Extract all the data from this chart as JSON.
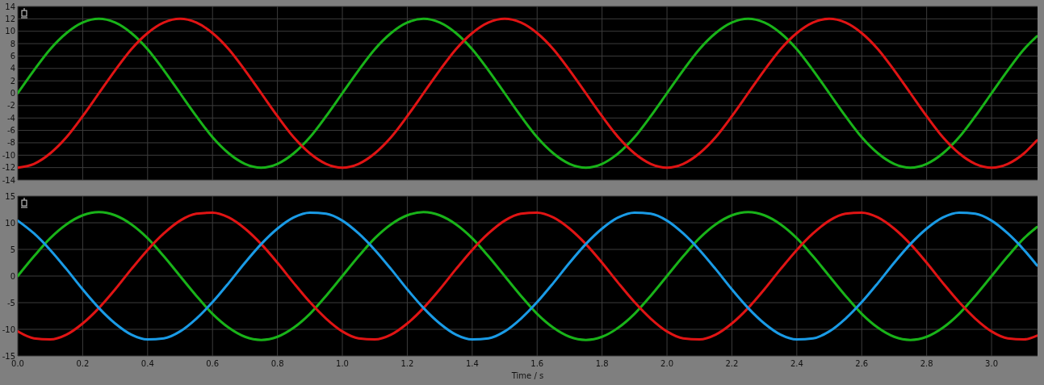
{
  "chart_data": [
    {
      "type": "line",
      "x": [
        0,
        0.05,
        0.1,
        0.15,
        0.2,
        0.25,
        0.3,
        0.35,
        0.4,
        0.45,
        0.5,
        0.55,
        0.6,
        0.65,
        0.7,
        0.75,
        0.8,
        0.85,
        0.9,
        0.95,
        1,
        1.05,
        1.1,
        1.15,
        1.2,
        1.25,
        1.3,
        1.35,
        1.4,
        1.45,
        1.5,
        1.55,
        1.6,
        1.65,
        1.7,
        1.75,
        1.8,
        1.85,
        1.9,
        1.95,
        2,
        2.05,
        2.1,
        2.15,
        2.2,
        2.25,
        2.3,
        2.35,
        2.4,
        2.45,
        2.5,
        2.55,
        2.6,
        2.65,
        2.7,
        2.75,
        2.8,
        2.85,
        2.9,
        2.95,
        3,
        3.05,
        3.1,
        3.14
      ],
      "series": [
        {
          "color": "#19b319",
          "values": [
            0,
            3.7,
            7.1,
            9.7,
            11.4,
            12,
            11.4,
            9.7,
            7.1,
            3.7,
            0,
            -3.7,
            -7.1,
            -9.7,
            -11.4,
            -12,
            -11.4,
            -9.7,
            -7.1,
            -3.7,
            0,
            3.7,
            7.1,
            9.7,
            11.4,
            12,
            11.4,
            9.7,
            7.1,
            3.7,
            0,
            -3.7,
            -7.1,
            -9.7,
            -11.4,
            -12,
            -11.4,
            -9.7,
            -7.1,
            -3.7,
            0,
            3.7,
            7.1,
            9.7,
            11.4,
            12,
            11.4,
            9.7,
            7.1,
            3.7,
            0,
            -3.7,
            -7.1,
            -9.7,
            -11.4,
            -12,
            -11.4,
            -9.7,
            -7.1,
            -3.7,
            0,
            3.7,
            7.1,
            9.2
          ]
        },
        {
          "color": "#e01414",
          "values": [
            -12,
            -11.4,
            -9.7,
            -7.1,
            -3.7,
            0,
            3.7,
            7.1,
            9.7,
            11.4,
            12,
            11.4,
            9.7,
            7.1,
            3.7,
            0,
            -3.7,
            -7.1,
            -9.7,
            -11.4,
            -12,
            -11.4,
            -9.7,
            -7.1,
            -3.7,
            0,
            3.7,
            7.1,
            9.7,
            11.4,
            12,
            11.4,
            9.7,
            7.1,
            3.7,
            0,
            -3.7,
            -7.1,
            -9.7,
            -11.4,
            -12,
            -11.4,
            -9.7,
            -7.1,
            -3.7,
            0,
            3.7,
            7.1,
            9.7,
            11.4,
            12,
            11.4,
            9.7,
            7.1,
            3.7,
            0,
            -3.7,
            -7.1,
            -9.7,
            -11.4,
            -12,
            -11.4,
            -9.7,
            -7.6
          ]
        }
      ],
      "xlim": [
        0,
        3.1416
      ],
      "xticks": [
        0,
        0.2,
        0.4,
        0.6,
        0.8,
        1,
        1.2,
        1.4,
        1.6,
        1.8,
        2,
        2.2,
        2.4,
        2.6,
        2.8,
        3
      ],
      "ylim": [
        -14,
        14
      ],
      "yticks": [
        -14,
        -12,
        -10,
        -8,
        -6,
        -4,
        -2,
        0,
        2,
        4,
        6,
        8,
        10,
        12,
        14
      ],
      "grid": true,
      "tick_labels": "y"
    },
    {
      "type": "line",
      "x": [
        0,
        0.05,
        0.1,
        0.15,
        0.2,
        0.25,
        0.3,
        0.35,
        0.4,
        0.45,
        0.5,
        0.55,
        0.6,
        0.65,
        0.7,
        0.75,
        0.8,
        0.85,
        0.9,
        0.95,
        1,
        1.05,
        1.1,
        1.15,
        1.2,
        1.25,
        1.3,
        1.35,
        1.4,
        1.45,
        1.5,
        1.55,
        1.6,
        1.65,
        1.7,
        1.75,
        1.8,
        1.85,
        1.9,
        1.95,
        2,
        2.05,
        2.1,
        2.15,
        2.2,
        2.25,
        2.3,
        2.35,
        2.4,
        2.45,
        2.5,
        2.55,
        2.6,
        2.65,
        2.7,
        2.75,
        2.8,
        2.85,
        2.9,
        2.95,
        3,
        3.05,
        3.1,
        3.14
      ],
      "xlabel": "Time / s",
      "series": [
        {
          "color": "#19b319",
          "values": [
            0,
            3.7,
            7.1,
            9.7,
            11.4,
            12,
            11.4,
            9.7,
            7.1,
            3.7,
            0,
            -3.7,
            -7.1,
            -9.7,
            -11.4,
            -12,
            -11.4,
            -9.7,
            -7.1,
            -3.7,
            0,
            3.7,
            7.1,
            9.7,
            11.4,
            12,
            11.4,
            9.7,
            7.1,
            3.7,
            0,
            -3.7,
            -7.1,
            -9.7,
            -11.4,
            -12,
            -11.4,
            -9.7,
            -7.1,
            -3.7,
            0,
            3.7,
            7.1,
            9.7,
            11.4,
            12,
            11.4,
            9.7,
            7.1,
            3.7,
            0,
            -3.7,
            -7.1,
            -9.7,
            -11.4,
            -12,
            -11.4,
            -9.7,
            -7.1,
            -3.7,
            0,
            3.7,
            7.1,
            9.2
          ]
        },
        {
          "color": "#e01414",
          "values": [
            -10.4,
            -11.7,
            -11.9,
            -11,
            -8.9,
            -6,
            -2.5,
            1.3,
            4.9,
            8,
            10.4,
            11.7,
            11.9,
            11,
            8.9,
            6,
            2.5,
            -1.3,
            -4.9,
            -8,
            -10.4,
            -11.7,
            -11.9,
            -11,
            -8.9,
            -6,
            -2.5,
            1.3,
            4.9,
            8,
            10.4,
            11.7,
            11.9,
            11,
            8.9,
            6,
            2.5,
            -1.3,
            -4.9,
            -8,
            -10.4,
            -11.7,
            -11.9,
            -11,
            -8.9,
            -6,
            -2.5,
            1.3,
            4.9,
            8,
            10.4,
            11.7,
            11.9,
            11,
            8.9,
            6,
            2.5,
            -1.3,
            -4.9,
            -8,
            -10.4,
            -11.7,
            -11.9,
            -11.2
          ]
        },
        {
          "color": "#1a9be6",
          "values": [
            10.4,
            8,
            4.9,
            1.3,
            -2.5,
            -6,
            -8.9,
            -11,
            -11.9,
            -11.7,
            -10.4,
            -8,
            -4.9,
            -1.3,
            2.5,
            6,
            8.9,
            11,
            11.9,
            11.7,
            10.4,
            8,
            4.9,
            1.3,
            -2.5,
            -6,
            -8.9,
            -11,
            -11.9,
            -11.7,
            -10.4,
            -8,
            -4.9,
            -1.3,
            2.5,
            6,
            8.9,
            11,
            11.9,
            11.7,
            10.4,
            8,
            4.9,
            1.3,
            -2.5,
            -6,
            -8.9,
            -11,
            -11.9,
            -11.7,
            -10.4,
            -8,
            -4.9,
            -1.3,
            2.5,
            6,
            8.9,
            11,
            11.9,
            11.7,
            10.4,
            8,
            4.9,
            2
          ]
        }
      ],
      "xlim": [
        0,
        3.1416
      ],
      "xticks": [
        {
          "value": 0,
          "label": "0.0"
        },
        {
          "value": 0.2,
          "label": "0.2"
        },
        {
          "value": 0.4,
          "label": "0.4"
        },
        {
          "value": 0.6,
          "label": "0.6"
        },
        {
          "value": 0.8,
          "label": "0.8"
        },
        {
          "value": 1,
          "label": "1.0"
        },
        {
          "value": 1.2,
          "label": "1.2"
        },
        {
          "value": 1.4,
          "label": "1.4"
        },
        {
          "value": 1.6,
          "label": "1.6"
        },
        {
          "value": 1.8,
          "label": "1.8"
        },
        {
          "value": 2,
          "label": "2.0"
        },
        {
          "value": 2.2,
          "label": "2.2"
        },
        {
          "value": 2.4,
          "label": "2.4"
        },
        {
          "value": 2.6,
          "label": "2.6"
        },
        {
          "value": 2.8,
          "label": "2.8"
        },
        {
          "value": 3,
          "label": "3.0"
        }
      ],
      "ylim": [
        -15,
        15
      ],
      "yticks": [
        -15,
        -10,
        -5,
        0,
        5,
        10,
        15
      ],
      "grid": true
    }
  ]
}
